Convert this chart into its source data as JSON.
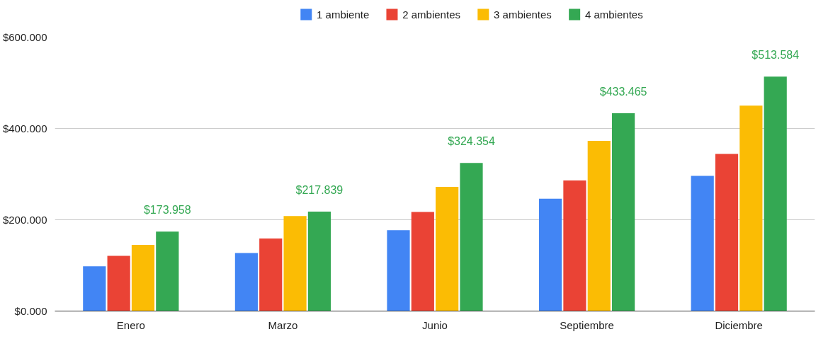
{
  "chart_data": {
    "type": "bar",
    "categories": [
      "Enero",
      "Marzo",
      "Junio",
      "Septiembre",
      "Diciembre"
    ],
    "series": [
      {
        "name": "1 ambiente",
        "color": "#4285f4",
        "values": [
          98,
          127,
          177,
          246,
          296
        ]
      },
      {
        "name": "2 ambientes",
        "color": "#ea4335",
        "values": [
          121,
          159,
          217,
          286,
          344
        ]
      },
      {
        "name": "3 ambientes",
        "color": "#fbbc04",
        "values": [
          145,
          208,
          272,
          373,
          450
        ]
      },
      {
        "name": "4 ambientes",
        "color": "#34a853",
        "values": [
          173.958,
          217.839,
          324.354,
          433.465,
          513.584
        ],
        "value_labels": [
          "$173.958",
          "$217.839",
          "$324.354",
          "$433.465",
          "$513.584"
        ]
      }
    ],
    "ylim": [
      0,
      600
    ],
    "yticks": [
      {
        "value": 0,
        "label": "$0.000"
      },
      {
        "value": 200,
        "label": "$200.000"
      },
      {
        "value": 400,
        "label": "$400.000"
      },
      {
        "value": 600,
        "label": "$600.000"
      }
    ],
    "grid": "y",
    "legend": "top"
  }
}
